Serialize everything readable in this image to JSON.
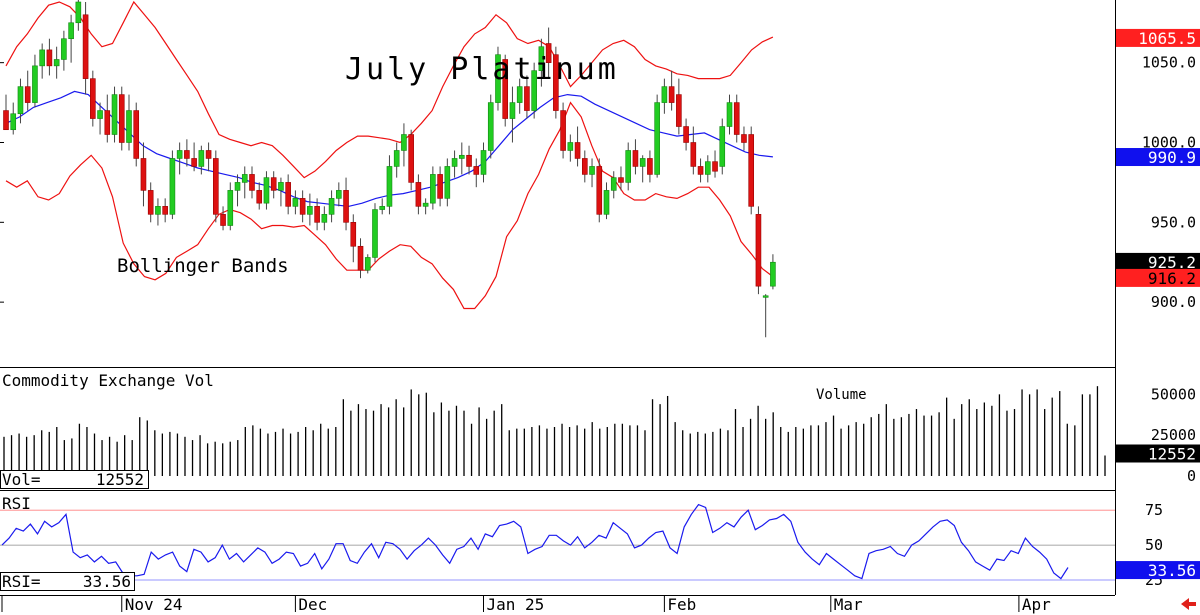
{
  "chart_data": {
    "type": "candlestick",
    "title": "July Platinum",
    "annotation": "Bollinger Bands",
    "x_labels": [
      {
        "label": "Nov 24",
        "bar": 16
      },
      {
        "label": "Dec",
        "bar": 40
      },
      {
        "label": "Jan 25",
        "bar": 66
      },
      {
        "label": "Feb",
        "bar": 91
      },
      {
        "label": "Mar",
        "bar": 114
      },
      {
        "label": "Apr",
        "bar": 140
      }
    ],
    "price_panel": {
      "ylim": [
        860,
        1088
      ],
      "ticks": [
        900,
        950,
        1000,
        1050
      ],
      "tick_labels": [
        "900.0",
        "950.0",
        "1000.0",
        "1050.0"
      ],
      "markers": [
        {
          "label": "1065.5",
          "value": 1065.5,
          "bg": "#ff2020",
          "fg": "#ffffff"
        },
        {
          "label": "990.9",
          "value": 990.9,
          "bg": "#1010ee",
          "fg": "#ffffff"
        },
        {
          "label": "925.2",
          "value": 925.2,
          "bg": "#000000",
          "fg": "#ffffff"
        },
        {
          "label": "916.2",
          "value": 916.2,
          "bg": "#ff2020",
          "fg": "#000000"
        }
      ],
      "candles": [
        [
          1020,
          1030,
          1010,
          1008
        ],
        [
          1008,
          1025,
          1005,
          1018
        ],
        [
          1018,
          1040,
          1012,
          1035
        ],
        [
          1035,
          1045,
          1020,
          1025
        ],
        [
          1025,
          1055,
          1022,
          1048
        ],
        [
          1048,
          1062,
          1040,
          1058
        ],
        [
          1058,
          1065,
          1042,
          1048
        ],
        [
          1048,
          1060,
          1040,
          1052
        ],
        [
          1052,
          1070,
          1045,
          1065
        ],
        [
          1065,
          1080,
          1050,
          1075
        ],
        [
          1075,
          1090,
          1070,
          1088
        ],
        [
          1080,
          1088,
          1030,
          1040
        ],
        [
          1040,
          1045,
          1010,
          1015
        ],
        [
          1015,
          1025,
          1005,
          1020
        ],
        [
          1020,
          1030,
          1000,
          1005
        ],
        [
          1005,
          1035,
          1000,
          1030
        ],
        [
          1030,
          1035,
          995,
          1000
        ],
        [
          1000,
          1030,
          995,
          1020
        ],
        [
          1020,
          1025,
          985,
          990
        ],
        [
          990,
          1000,
          960,
          970
        ],
        [
          970,
          975,
          950,
          955
        ],
        [
          955,
          965,
          948,
          960
        ],
        [
          960,
          965,
          950,
          955
        ],
        [
          955,
          995,
          952,
          990
        ],
        [
          990,
          1000,
          980,
          995
        ],
        [
          995,
          1002,
          985,
          990
        ],
        [
          990,
          1000,
          982,
          985
        ],
        [
          985,
          998,
          980,
          995
        ],
        [
          995,
          1000,
          982,
          990
        ],
        [
          990,
          995,
          950,
          955
        ],
        [
          955,
          960,
          945,
          948
        ],
        [
          948,
          975,
          945,
          970
        ],
        [
          970,
          980,
          960,
          975
        ],
        [
          975,
          985,
          965,
          980
        ],
        [
          980,
          985,
          965,
          970
        ],
        [
          970,
          975,
          958,
          962
        ],
        [
          962,
          982,
          958,
          978
        ],
        [
          978,
          982,
          965,
          970
        ],
        [
          970,
          978,
          960,
          975
        ],
        [
          975,
          980,
          955,
          960
        ],
        [
          960,
          970,
          955,
          965
        ],
        [
          965,
          970,
          950,
          955
        ],
        [
          955,
          968,
          948,
          960
        ],
        [
          960,
          965,
          945,
          950
        ],
        [
          950,
          960,
          945,
          955
        ],
        [
          955,
          970,
          950,
          965
        ],
        [
          965,
          975,
          960,
          970
        ],
        [
          970,
          978,
          945,
          950
        ],
        [
          950,
          955,
          925,
          935
        ],
        [
          935,
          940,
          915,
          920
        ],
        [
          920,
          930,
          918,
          928
        ],
        [
          928,
          962,
          925,
          958
        ],
        [
          958,
          965,
          955,
          960
        ],
        [
          960,
          992,
          955,
          985
        ],
        [
          985,
          1000,
          978,
          995
        ],
        [
          995,
          1012,
          985,
          1005
        ],
        [
          1005,
          1008,
          970,
          975
        ],
        [
          975,
          980,
          955,
          960
        ],
        [
          960,
          965,
          955,
          962
        ],
        [
          962,
          985,
          958,
          980
        ],
        [
          980,
          985,
          960,
          965
        ],
        [
          965,
          990,
          960,
          985
        ],
        [
          985,
          995,
          978,
          990
        ],
        [
          990,
          1000,
          980,
          992
        ],
        [
          992,
          998,
          980,
          985
        ],
        [
          985,
          990,
          972,
          980
        ],
        [
          980,
          1000,
          975,
          995
        ],
        [
          995,
          1030,
          990,
          1025
        ],
        [
          1025,
          1060,
          1020,
          1055
        ],
        [
          1052,
          1055,
          1010,
          1015
        ],
        [
          1015,
          1035,
          1000,
          1025
        ],
        [
          1025,
          1040,
          1018,
          1035
        ],
        [
          1035,
          1042,
          1015,
          1020
        ],
        [
          1020,
          1050,
          1015,
          1045
        ],
        [
          1045,
          1065,
          1035,
          1060
        ],
        [
          1062,
          1072,
          1040,
          1050
        ],
        [
          1055,
          1060,
          1015,
          1020
        ],
        [
          1020,
          1025,
          990,
          995
        ],
        [
          995,
          1005,
          988,
          1000
        ],
        [
          1000,
          1010,
          985,
          990
        ],
        [
          990,
          995,
          975,
          980
        ],
        [
          980,
          990,
          972,
          985
        ],
        [
          985,
          990,
          950,
          955
        ],
        [
          955,
          975,
          952,
          970
        ],
        [
          970,
          982,
          965,
          978
        ],
        [
          978,
          985,
          970,
          975
        ],
        [
          975,
          1000,
          970,
          995
        ],
        [
          995,
          1002,
          980,
          985
        ],
        [
          985,
          992,
          975,
          990
        ],
        [
          990,
          995,
          975,
          980
        ],
        [
          980,
          1030,
          978,
          1025
        ],
        [
          1025,
          1040,
          1018,
          1035
        ],
        [
          1035,
          1045,
          1020,
          1025
        ],
        [
          1030,
          1040,
          1005,
          1010
        ],
        [
          1010,
          1015,
          995,
          1000
        ],
        [
          1000,
          1010,
          980,
          985
        ],
        [
          985,
          990,
          975,
          980
        ],
        [
          980,
          992,
          975,
          988
        ],
        [
          988,
          995,
          978,
          982
        ],
        [
          985,
          1015,
          980,
          1010
        ],
        [
          1010,
          1030,
          1005,
          1025
        ],
        [
          1025,
          1030,
          1000,
          1005
        ],
        [
          1005,
          1010,
          995,
          1000
        ],
        [
          1005,
          1010,
          955,
          960
        ],
        [
          955,
          960,
          905,
          910
        ],
        [
          903,
          905,
          878,
          904
        ],
        [
          910,
          930,
          908,
          925
        ]
      ],
      "bollinger": {
        "upper": [
          1048,
          1060,
          1068,
          1078,
          1086,
          1088,
          1085,
          1078,
          1068,
          1060,
          1062,
          1075,
          1088,
          1080,
          1072,
          1062,
          1052,
          1042,
          1032,
          1018,
          1005,
          1002,
          1000,
          998,
          1000,
          998,
          992,
          985,
          978,
          982,
          988,
          995,
          1000,
          1004,
          1004,
          1003,
          1002,
          1000,
          1005,
          1012,
          1020,
          1035,
          1048,
          1060,
          1068,
          1072,
          1080,
          1075,
          1065,
          1062,
          1064,
          1060,
          1048,
          1035,
          1042,
          1050,
          1058,
          1062,
          1064,
          1060,
          1052,
          1048,
          1046,
          1043,
          1042,
          1040,
          1040,
          1040,
          1042,
          1050,
          1058,
          1063,
          1066
        ],
        "middle": [
          1012,
          1016,
          1022,
          1025,
          1028,
          1032,
          1030,
          1022,
          1014,
          1006,
          998,
          993,
          990,
          987,
          984,
          982,
          980,
          978,
          975,
          973,
          970,
          966,
          963,
          962,
          961,
          960,
          962,
          965,
          967,
          968,
          970,
          972,
          975,
          978,
          982,
          988,
          998,
          1008,
          1015,
          1022,
          1028,
          1030,
          1029,
          1024,
          1020,
          1016,
          1012,
          1008,
          1006,
          1004,
          1005,
          1006,
          1002,
          998,
          994,
          992,
          991
        ]
      }
    },
    "volume_panel": {
      "label": "Commodity Exchange Vol",
      "annotation": "Volume",
      "readout_label": "Vol=",
      "readout_value": "12552",
      "ticks": [
        0,
        25000,
        50000
      ],
      "tick_labels": [
        "0",
        "25000",
        "50000"
      ],
      "ylim": [
        0,
        60000
      ],
      "last_marker": {
        "label": "12552",
        "value": 12552,
        "bg": "#000000",
        "fg": "#ffffff"
      },
      "values": [
        24000,
        25000,
        26000,
        24000,
        25000,
        28000,
        27000,
        30000,
        22000,
        23000,
        32000,
        30000,
        26000,
        22000,
        24000,
        21000,
        25000,
        22000,
        36000,
        34000,
        28000,
        26000,
        27000,
        26000,
        24000,
        22000,
        25000,
        20000,
        21000,
        20000,
        21000,
        22000,
        30000,
        31000,
        29000,
        26000,
        27000,
        29000,
        26000,
        27000,
        30000,
        28000,
        32000,
        29000,
        30000,
        47000,
        40000,
        44000,
        41000,
        40000,
        44000,
        42000,
        47000,
        42000,
        53000,
        50000,
        51000,
        39000,
        45000,
        40000,
        43000,
        40000,
        32000,
        42000,
        35000,
        40000,
        44000,
        28000,
        29000,
        29000,
        30000,
        31000,
        29000,
        30000,
        32000,
        30000,
        31000,
        29000,
        33000,
        29000,
        30000,
        32000,
        32000,
        31000,
        31000,
        28000,
        47000,
        44000,
        49000,
        33000,
        28000,
        26000,
        27000,
        26000,
        27000,
        29000,
        28000,
        41000,
        30000,
        35000,
        43000,
        35000,
        39000,
        30000,
        27000,
        30000,
        29000,
        31000,
        31000,
        33000,
        37000,
        29000,
        31000,
        33000,
        32000,
        36000,
        38000,
        44000,
        35000,
        36000,
        38000,
        41000,
        37000,
        37000,
        39000,
        48000,
        35000,
        44000,
        47000,
        41000,
        45000,
        43000,
        50000,
        40000,
        41000,
        53000,
        50000,
        53000,
        41000,
        48000,
        52000,
        32000,
        31000,
        50000,
        50000,
        55000,
        12552
      ]
    },
    "rsi_panel": {
      "label": "RSI",
      "readout_label": "RSI=",
      "readout_value": "33.56",
      "ticks": [
        25,
        50,
        75
      ],
      "tick_labels": [
        "25",
        "50",
        "75"
      ],
      "ylim": [
        15,
        88
      ],
      "reference_lines": [
        75,
        50,
        25
      ],
      "last_marker": {
        "label": "33.56",
        "value": 33.56,
        "bg": "#1010ee",
        "fg": "#ffffff"
      },
      "values": [
        50,
        55,
        62,
        60,
        65,
        58,
        67,
        63,
        66,
        72,
        45,
        41,
        43,
        38,
        42,
        37,
        38,
        30,
        28,
        28,
        29,
        45,
        40,
        43,
        45,
        35,
        31,
        47,
        45,
        38,
        41,
        50,
        40,
        44,
        38,
        43,
        48,
        45,
        37,
        40,
        45,
        44,
        35,
        37,
        44,
        33,
        40,
        51,
        51,
        39,
        37,
        45,
        51,
        41,
        52,
        51,
        47,
        40,
        46,
        50,
        55,
        50,
        43,
        37,
        47,
        49,
        55,
        47,
        58,
        56,
        64,
        65,
        67,
        63,
        44,
        47,
        49,
        57,
        57,
        53,
        50,
        56,
        48,
        52,
        57,
        55,
        66,
        62,
        58,
        48,
        50,
        55,
        59,
        60,
        48,
        44,
        63,
        72,
        79,
        77,
        59,
        62,
        66,
        63,
        70,
        75,
        61,
        64,
        68,
        69,
        72,
        67,
        52,
        45,
        40,
        36,
        44,
        40,
        36,
        32,
        28,
        26,
        44,
        46,
        47,
        49,
        44,
        42,
        50,
        53,
        58,
        63,
        67,
        68,
        64,
        52,
        46,
        38,
        35,
        32,
        40,
        39,
        46,
        44,
        55,
        49,
        45,
        40,
        30,
        26,
        34
      ]
    }
  }
}
